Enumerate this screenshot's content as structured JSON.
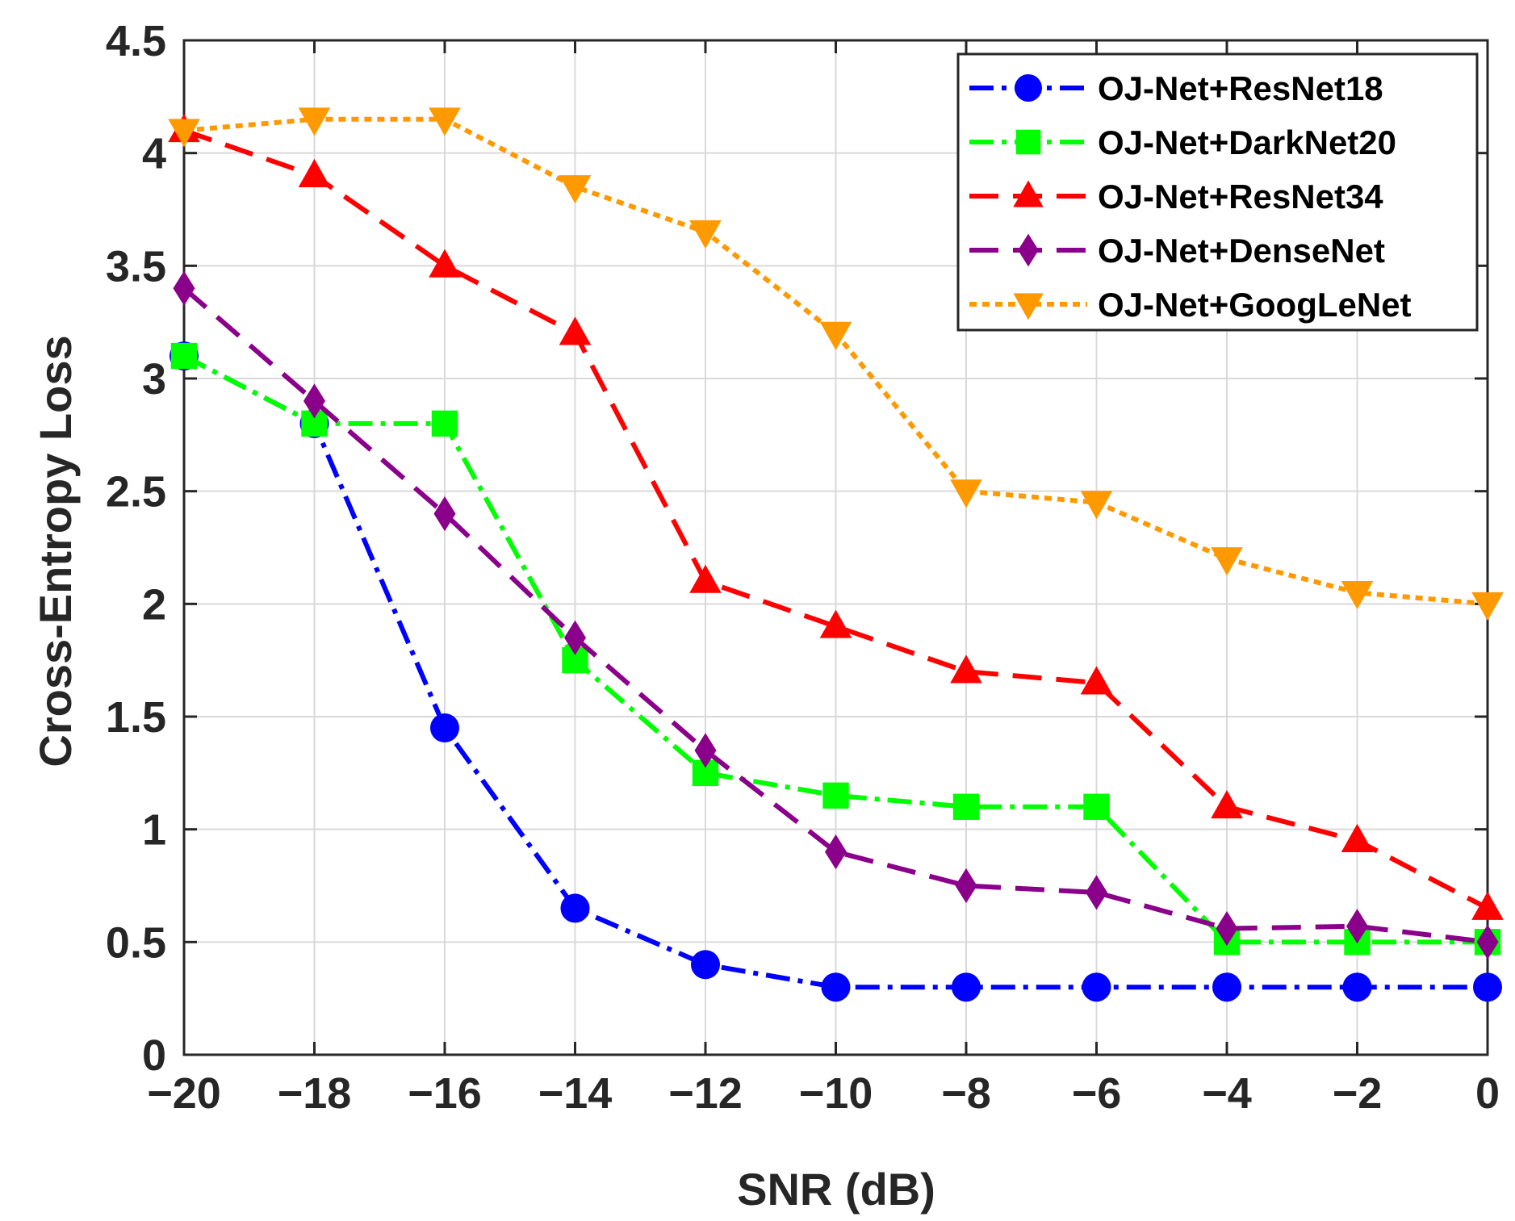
{
  "chart_data": {
    "type": "line",
    "title": "",
    "xlabel": "SNR (dB)",
    "ylabel": "Cross-Entropy Loss",
    "x": [
      -20,
      -18,
      -16,
      -14,
      -12,
      -10,
      -8,
      -6,
      -4,
      -2,
      0
    ],
    "xlim": [
      -20,
      0
    ],
    "ylim": [
      0,
      4.5
    ],
    "xticks": [
      -20,
      -18,
      -16,
      -14,
      -12,
      -10,
      -8,
      -6,
      -4,
      -2,
      0
    ],
    "xtick_labels": [
      "−20",
      "−18",
      "−16",
      "−14",
      "−12",
      "−10",
      "−8",
      "−6",
      "−4",
      "−2",
      "0"
    ],
    "yticks": [
      0,
      0.5,
      1,
      1.5,
      2,
      2.5,
      3,
      3.5,
      4,
      4.5
    ],
    "ytick_labels": [
      "0",
      "0.5",
      "1",
      "1.5",
      "2",
      "2.5",
      "3",
      "3.5",
      "4",
      "4.5"
    ],
    "grid": true,
    "legend_position": "top-right",
    "series": [
      {
        "name": "OJ-Net+ResNet18",
        "color": "#0000ff",
        "marker": "circle",
        "line_style": "dash-dot",
        "values": [
          3.1,
          2.8,
          1.45,
          0.65,
          0.4,
          0.3,
          0.3,
          0.3,
          0.3,
          0.3,
          0.3
        ]
      },
      {
        "name": "OJ-Net+DarkNet20",
        "color": "#00ff00",
        "marker": "square",
        "line_style": "dash-dot",
        "values": [
          3.1,
          2.8,
          2.8,
          1.75,
          1.25,
          1.15,
          1.1,
          1.1,
          0.5,
          0.5,
          0.5
        ]
      },
      {
        "name": "OJ-Net+ResNet34",
        "color": "#ff0000",
        "marker": "triangle-up",
        "line_style": "dashed",
        "values": [
          4.1,
          3.9,
          3.5,
          3.2,
          2.1,
          1.9,
          1.7,
          1.65,
          1.1,
          0.95,
          0.65
        ]
      },
      {
        "name": "OJ-Net+DenseNet",
        "color": "#8b008b",
        "marker": "diamond",
        "line_style": "dashed",
        "values": [
          3.4,
          2.9,
          2.4,
          1.85,
          1.35,
          0.9,
          0.75,
          0.72,
          0.56,
          0.57,
          0.5
        ]
      },
      {
        "name": "OJ-Net+GoogLeNet",
        "color": "#ff9900",
        "marker": "triangle-down",
        "line_style": "dotted",
        "values": [
          4.1,
          4.15,
          4.15,
          3.85,
          3.65,
          3.2,
          2.5,
          2.45,
          2.2,
          2.05,
          2.0
        ]
      }
    ]
  }
}
